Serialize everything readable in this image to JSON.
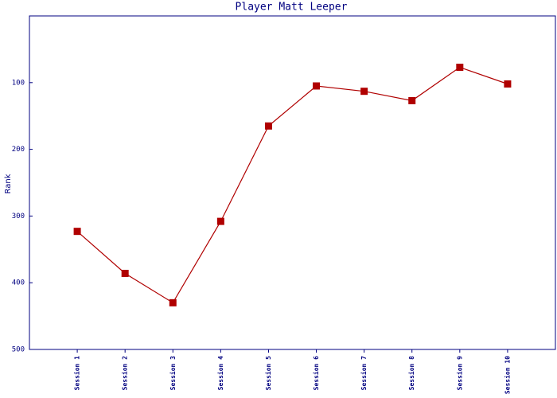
{
  "chart_data": {
    "type": "line",
    "title": "Player Matt Leeper",
    "y_label": "Rank",
    "categories": [
      "Session 1",
      "Session 2",
      "Session 3",
      "Session 4",
      "Session 5",
      "Session 6",
      "Session 7",
      "Session 8",
      "Session 9",
      "Session 10"
    ],
    "values": [
      323,
      386,
      430,
      308,
      165,
      105,
      113,
      127,
      77,
      102
    ],
    "color": "#b00000",
    "ylim": [
      0,
      500
    ],
    "y_inverted": true,
    "yticks": [
      100,
      200,
      300,
      400,
      500
    ],
    "grid": false
  }
}
